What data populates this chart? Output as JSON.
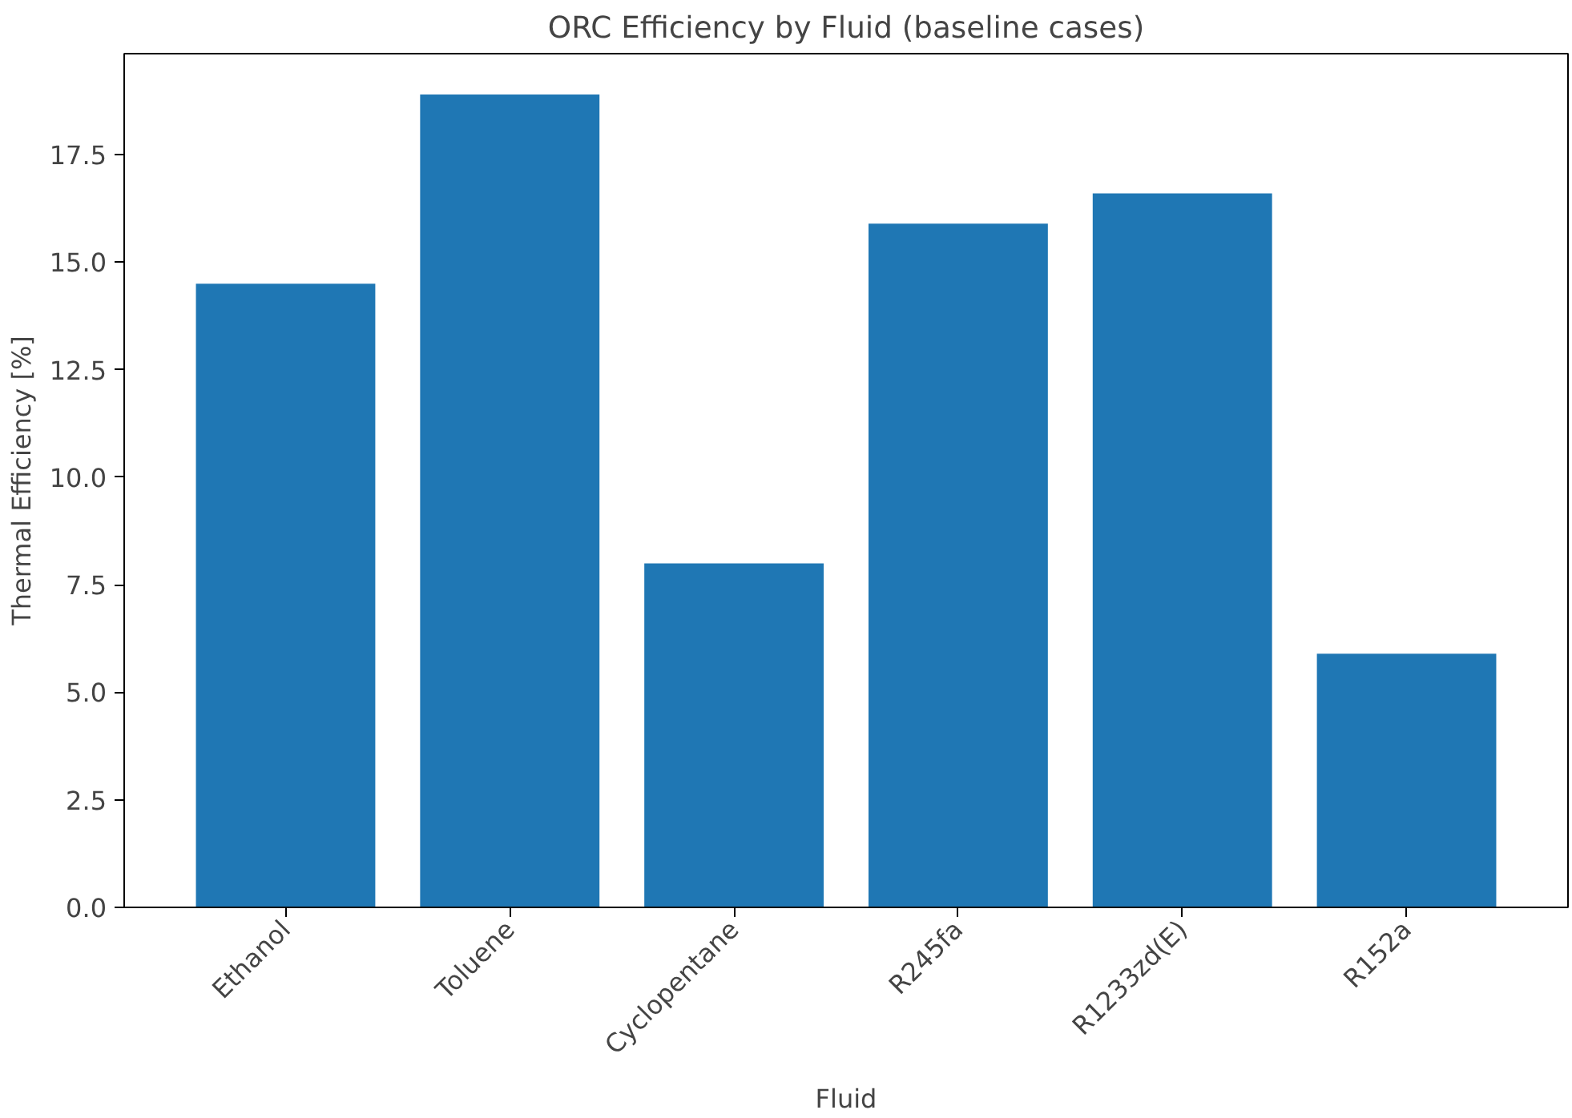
{
  "chart_data": {
    "type": "bar",
    "title": "ORC Efficiency by Fluid (baseline cases)",
    "xlabel": "Fluid",
    "ylabel": "Thermal Efficiency [%]",
    "categories": [
      "Ethanol",
      "Toluene",
      "Cyclopentane",
      "R245fa",
      "R1233zd(E)",
      "R152a"
    ],
    "values": [
      14.5,
      18.9,
      8.0,
      15.9,
      16.6,
      5.9
    ],
    "color": "#1f77b4",
    "ylim": [
      0,
      19.85
    ],
    "yticks": [
      {
        "value": 0,
        "label": "0.0"
      },
      {
        "value": 2.5,
        "label": "2.5"
      },
      {
        "value": 5,
        "label": "5.0"
      },
      {
        "value": 7.5,
        "label": "7.5"
      },
      {
        "value": 10,
        "label": "10.0"
      },
      {
        "value": 12.5,
        "label": "12.5"
      },
      {
        "value": 15,
        "label": "15.0"
      },
      {
        "value": 17.5,
        "label": "17.5"
      }
    ],
    "grid": false
  }
}
